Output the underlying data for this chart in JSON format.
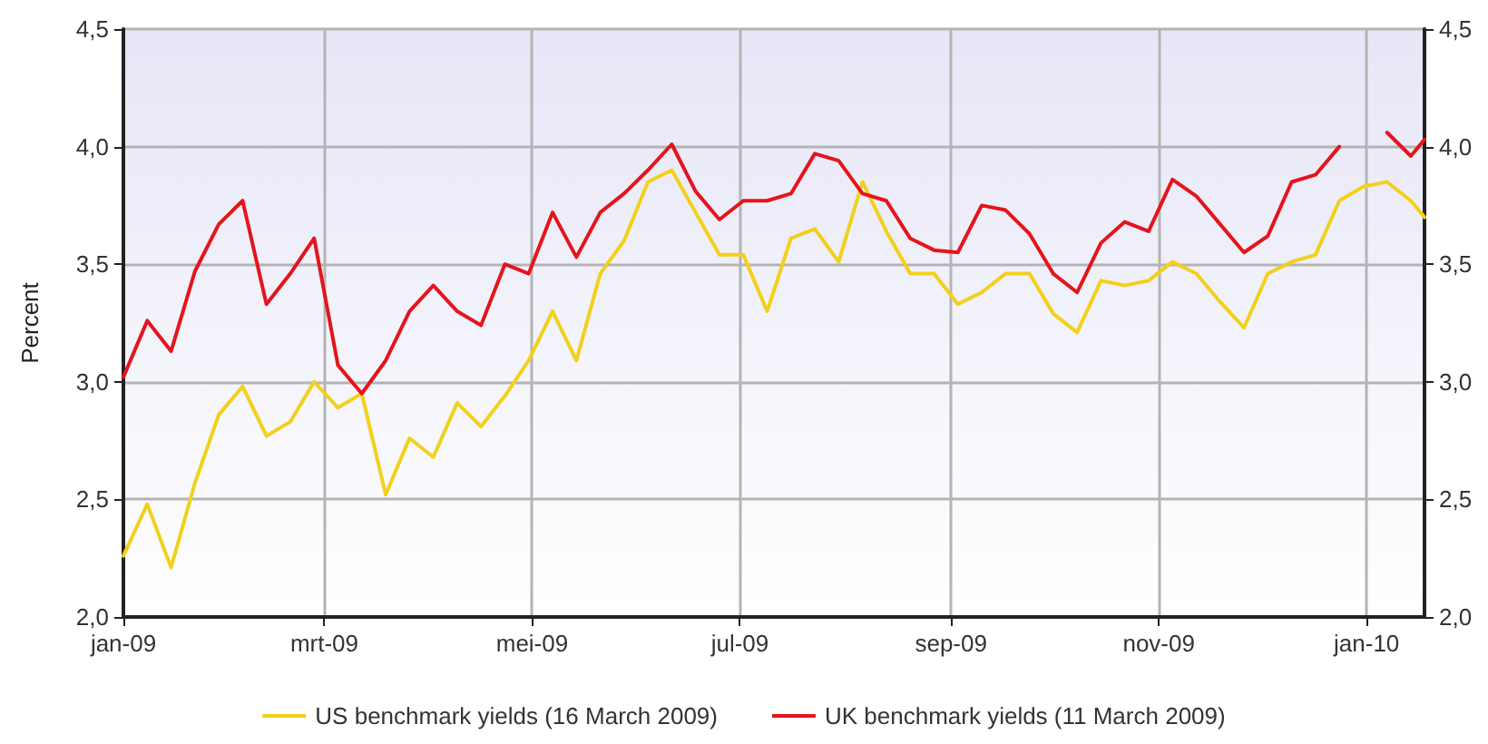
{
  "chart_data": {
    "type": "line",
    "ylabel": "Percent",
    "x": [
      "2009-01-01",
      "2009-01-08",
      "2009-01-15",
      "2009-01-22",
      "2009-01-29",
      "2009-02-05",
      "2009-02-12",
      "2009-02-19",
      "2009-02-26",
      "2009-03-05",
      "2009-03-12",
      "2009-03-19",
      "2009-03-26",
      "2009-04-02",
      "2009-04-09",
      "2009-04-16",
      "2009-04-23",
      "2009-04-30",
      "2009-05-07",
      "2009-05-14",
      "2009-05-21",
      "2009-05-28",
      "2009-06-04",
      "2009-06-11",
      "2009-06-18",
      "2009-06-25",
      "2009-07-02",
      "2009-07-09",
      "2009-07-16",
      "2009-07-23",
      "2009-07-30",
      "2009-08-06",
      "2009-08-13",
      "2009-08-20",
      "2009-08-27",
      "2009-09-03",
      "2009-09-10",
      "2009-09-17",
      "2009-09-24",
      "2009-10-01",
      "2009-10-08",
      "2009-10-15",
      "2009-10-22",
      "2009-10-29",
      "2009-11-05",
      "2009-11-12",
      "2009-11-19",
      "2009-11-26",
      "2009-12-03",
      "2009-12-10",
      "2009-12-17",
      "2009-12-24",
      "2009-12-31",
      "2010-01-07",
      "2010-01-14",
      "2010-01-18"
    ],
    "series": [
      {
        "name": "US benchmark yields (16 March 2009)",
        "color": "#f2d01c",
        "values": [
          2.26,
          2.48,
          2.21,
          2.57,
          2.86,
          2.98,
          2.77,
          2.83,
          3.0,
          2.89,
          2.95,
          2.52,
          2.76,
          2.68,
          2.91,
          2.81,
          2.94,
          3.09,
          3.3,
          3.09,
          3.46,
          3.6,
          3.85,
          3.9,
          3.72,
          3.54,
          3.54,
          3.3,
          3.61,
          3.65,
          3.51,
          3.85,
          3.64,
          3.46,
          3.46,
          3.33,
          3.38,
          3.46,
          3.46,
          3.29,
          3.21,
          3.43,
          3.41,
          3.43,
          3.51,
          3.46,
          3.34,
          3.23,
          3.46,
          3.51,
          3.54,
          3.77,
          3.83,
          3.85,
          3.77,
          3.7
        ]
      },
      {
        "name": "UK benchmark yields (11 March 2009)",
        "color": "#e5141c",
        "values": [
          3.02,
          3.26,
          3.13,
          3.47,
          3.67,
          3.77,
          3.33,
          3.46,
          3.61,
          3.07,
          2.95,
          3.09,
          3.3,
          3.41,
          3.3,
          3.24,
          3.5,
          3.46,
          3.72,
          3.53,
          3.72,
          3.8,
          3.9,
          4.01,
          3.81,
          3.69,
          3.77,
          3.77,
          3.8,
          3.97,
          3.94,
          3.8,
          3.77,
          3.61,
          3.56,
          3.55,
          3.75,
          3.73,
          3.63,
          3.46,
          3.38,
          3.59,
          3.68,
          3.64,
          3.86,
          3.79,
          3.67,
          3.55,
          3.62,
          3.85,
          3.88,
          4.0,
          null,
          4.06,
          3.96,
          4.03
        ]
      }
    ],
    "xlim": [
      "2009-01-01",
      "2010-01-18"
    ],
    "xticks": [
      {
        "value": "2009-01-01",
        "label": "jan-09"
      },
      {
        "value": "2009-03-01",
        "label": "mrt-09"
      },
      {
        "value": "2009-05-01",
        "label": "mei-09"
      },
      {
        "value": "2009-07-01",
        "label": "jul-09"
      },
      {
        "value": "2009-09-01",
        "label": "sep-09"
      },
      {
        "value": "2009-11-01",
        "label": "nov-09"
      },
      {
        "value": "2010-01-01",
        "label": "jan-10"
      }
    ],
    "ylim": [
      2.0,
      4.5
    ],
    "yticks": [
      {
        "value": 2.0,
        "label": "2,0"
      },
      {
        "value": 2.5,
        "label": "2,5"
      },
      {
        "value": 3.0,
        "label": "3,0"
      },
      {
        "value": 3.5,
        "label": "3,5"
      },
      {
        "value": 4.0,
        "label": "4,0"
      },
      {
        "value": 4.5,
        "label": "4,5"
      }
    ],
    "y2lim": [
      2.0,
      4.5
    ],
    "y2ticks": [
      {
        "value": 2.0,
        "label": "2,0"
      },
      {
        "value": 2.5,
        "label": "2,5"
      },
      {
        "value": 3.0,
        "label": "3,0"
      },
      {
        "value": 3.5,
        "label": "3,5"
      },
      {
        "value": 4.0,
        "label": "4,0"
      },
      {
        "value": 4.5,
        "label": "4,5"
      }
    ],
    "grid": true,
    "legend": "bottom",
    "marker": "none",
    "line_style": "solid"
  }
}
